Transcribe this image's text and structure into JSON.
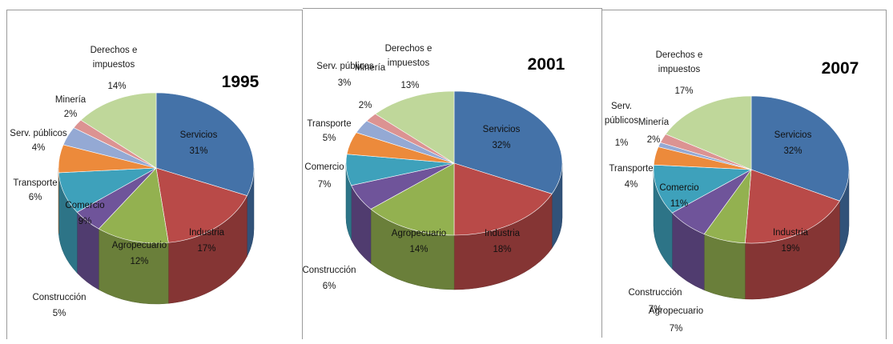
{
  "colors": {
    "Servicios": "#4472a8",
    "Industria": "#b94a48",
    "Agropecuario": "#93b150",
    "Construcción": "#6f549a",
    "Comercio": "#3ea1bb",
    "Transporte": "#ec8a3b",
    "Serv. públicos": "#94a9d4",
    "Minería": "#dc9392",
    "Derechos e impuestos": "#bfd79a"
  },
  "chart_data": [
    {
      "type": "pie",
      "title": "1995",
      "slices": [
        {
          "label": "Servicios",
          "value": 31,
          "pct": "31%"
        },
        {
          "label": "Industria",
          "value": 17,
          "pct": "17%"
        },
        {
          "label": "Agropecuario",
          "value": 12,
          "pct": "12%"
        },
        {
          "label": "Construcción",
          "value": 5,
          "pct": "5%"
        },
        {
          "label": "Comercio",
          "value": 9,
          "pct": "9%"
        },
        {
          "label": "Transporte",
          "value": 6,
          "pct": "6%"
        },
        {
          "label": "Serv. públicos",
          "value": 4,
          "pct": "4%"
        },
        {
          "label": "Minería",
          "value": 2,
          "pct": "2%"
        },
        {
          "label": "Derechos e impuestos",
          "value": 14,
          "pct": "14%"
        }
      ]
    },
    {
      "type": "pie",
      "title": "2001",
      "slices": [
        {
          "label": "Servicios",
          "value": 32,
          "pct": "32%"
        },
        {
          "label": "Industria",
          "value": 18,
          "pct": "18%"
        },
        {
          "label": "Agropecuario",
          "value": 14,
          "pct": "14%"
        },
        {
          "label": "Construcción",
          "value": 6,
          "pct": "6%"
        },
        {
          "label": "Comercio",
          "value": 7,
          "pct": "7%"
        },
        {
          "label": "Transporte",
          "value": 5,
          "pct": "5%"
        },
        {
          "label": "Serv. públicos",
          "value": 3,
          "pct": "3%"
        },
        {
          "label": "Minería",
          "value": 2,
          "pct": "2%"
        },
        {
          "label": "Derechos e impuestos",
          "value": 13,
          "pct": "13%"
        }
      ]
    },
    {
      "type": "pie",
      "title": "2007",
      "slices": [
        {
          "label": "Servicios",
          "value": 32,
          "pct": "32%"
        },
        {
          "label": "Industria",
          "value": 19,
          "pct": "19%"
        },
        {
          "label": "Agropecuario",
          "value": 7,
          "pct": "7%"
        },
        {
          "label": "Construcción",
          "value": 7,
          "pct": "7%"
        },
        {
          "label": "Comercio",
          "value": 11,
          "pct": "11%"
        },
        {
          "label": "Transporte",
          "value": 4,
          "pct": "4%"
        },
        {
          "label": "Serv. públicos",
          "value": 1,
          "pct": "1%"
        },
        {
          "label": "Minería",
          "value": 2,
          "pct": "2%"
        },
        {
          "label": "Derechos e impuestos",
          "value": 17,
          "pct": "17%"
        }
      ]
    }
  ]
}
